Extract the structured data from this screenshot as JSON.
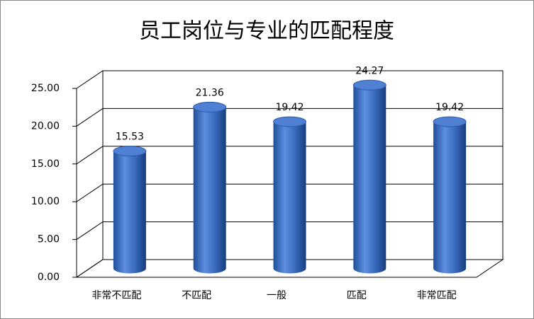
{
  "chart_data": {
    "type": "bar",
    "title": "员工岗位与专业的匹配程度",
    "categories": [
      "非常不匹配",
      "不匹配",
      "一般",
      "匹配",
      "非常匹配"
    ],
    "values": [
      15.53,
      21.36,
      19.42,
      24.27,
      19.42
    ],
    "color": "#3a6cc0",
    "ylim": [
      0,
      25
    ],
    "yticks": [
      {
        "value": 0,
        "label": "0.00"
      },
      {
        "value": 5,
        "label": "5.00"
      },
      {
        "value": 10,
        "label": "10.00"
      },
      {
        "value": 15,
        "label": "15.00"
      },
      {
        "value": 20,
        "label": "20.00"
      },
      {
        "value": 25,
        "label": "25.00"
      }
    ],
    "grid": true
  }
}
